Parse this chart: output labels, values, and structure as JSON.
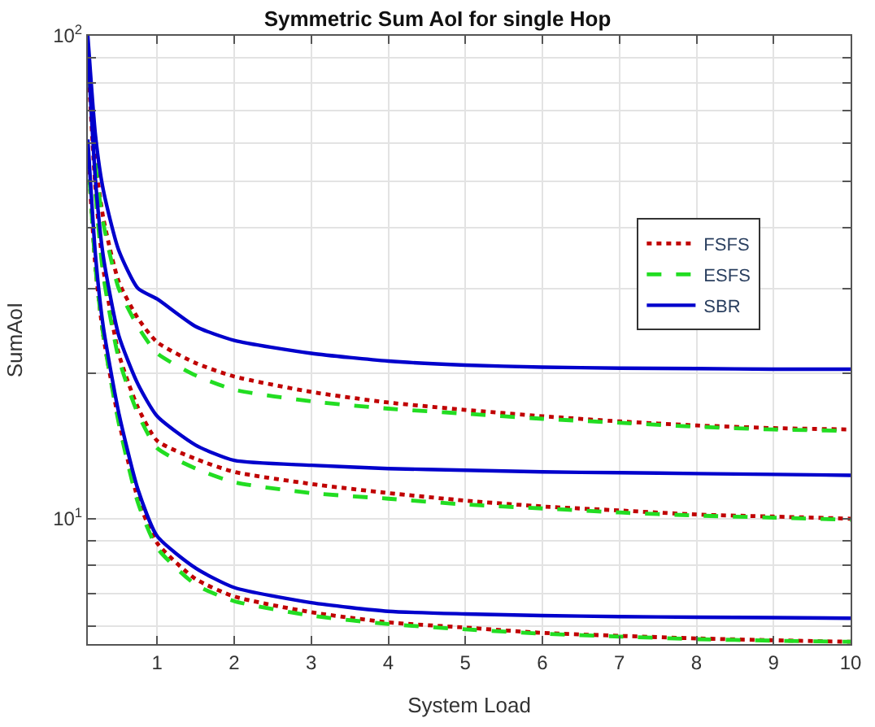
{
  "chart_data": {
    "type": "line",
    "title": "Symmetric Sum AoI for single Hop",
    "xlabel": "System Load",
    "ylabel": "SumAoI",
    "x": [
      0.1,
      0.2,
      0.3,
      0.5,
      0.75,
      1,
      1.5,
      2,
      3,
      4,
      5,
      6,
      7,
      8,
      9,
      10
    ],
    "series": [
      {
        "name": "FSFS",
        "color": "#c00000",
        "line_style": "dotted",
        "values": [
          95,
          55,
          42,
          31,
          26,
          23.2,
          21,
          19.7,
          18.3,
          17.4,
          16.8,
          16.3,
          15.9,
          15.6,
          15.4,
          15.3
        ]
      },
      {
        "name": "ESFS",
        "color": "#22dd22",
        "line_style": "dashed",
        "values": [
          95,
          54,
          41,
          30,
          25,
          22,
          19.8,
          18.5,
          17.5,
          16.9,
          16.5,
          16.1,
          15.8,
          15.5,
          15.3,
          15.2
        ]
      },
      {
        "name": "SBR",
        "color": "#0000cc",
        "line_style": "solid",
        "values": [
          100,
          62,
          48,
          36,
          30,
          28.5,
          25,
          23.4,
          22,
          21.2,
          20.8,
          20.6,
          20.5,
          20.45,
          20.4,
          20.4
        ]
      },
      {
        "color": "#c00000",
        "line_style": "dotted",
        "values": [
          90,
          48,
          33,
          22,
          17,
          14.5,
          13.3,
          12.5,
          11.8,
          11.3,
          10.9,
          10.6,
          10.4,
          10.2,
          10.1,
          10
        ]
      },
      {
        "color": "#22dd22",
        "line_style": "dashed",
        "values": [
          null,
          47,
          32,
          21.5,
          16.5,
          14,
          12.7,
          11.9,
          11.3,
          11,
          10.7,
          10.5,
          10.3,
          10.15,
          10.05,
          9.95
        ]
      },
      {
        "color": "#0000cc",
        "line_style": "solid",
        "values": [
          94,
          50,
          35,
          24,
          19,
          16.3,
          14.2,
          13.2,
          12.9,
          12.7,
          12.6,
          12.5,
          12.45,
          12.4,
          12.35,
          12.3
        ]
      },
      {
        "color": "#c00000",
        "line_style": "dotted",
        "values": [
          58,
          33,
          24,
          16,
          11,
          8.9,
          7.5,
          6.9,
          6.4,
          6.1,
          5.95,
          5.8,
          5.72,
          5.65,
          5.6,
          5.56
        ]
      },
      {
        "color": "#22dd22",
        "line_style": "dashed",
        "values": [
          58,
          33,
          24,
          15.8,
          10.8,
          8.7,
          7.3,
          6.75,
          6.3,
          6.05,
          5.9,
          5.78,
          5.7,
          5.63,
          5.59,
          5.56
        ]
      },
      {
        "color": "#0000cc",
        "line_style": "solid",
        "values": [
          61,
          35,
          25,
          16.6,
          11.5,
          9.2,
          7.9,
          7.2,
          6.7,
          6.43,
          6.35,
          6.3,
          6.27,
          6.25,
          6.24,
          6.22
        ]
      }
    ],
    "log": "y",
    "xlim": [
      0.1,
      10
    ],
    "xticks": [
      1,
      2,
      3,
      4,
      5,
      6,
      7,
      8,
      9,
      10
    ],
    "ylim": [
      5.5,
      100
    ],
    "yticks": [
      {
        "value": 6,
        "label": null
      },
      {
        "value": 7,
        "label": null
      },
      {
        "value": 8,
        "label": null
      },
      {
        "value": 9,
        "label": null
      },
      {
        "value": 10,
        "label": "10$^{1}$"
      },
      {
        "value": 20,
        "label": null
      },
      {
        "value": 30,
        "label": null
      },
      {
        "value": 40,
        "label": null
      },
      {
        "value": 50,
        "label": null
      },
      {
        "value": 60,
        "label": null
      },
      {
        "value": 70,
        "label": null
      },
      {
        "value": 80,
        "label": null
      },
      {
        "value": 90,
        "label": null
      },
      {
        "value": 100,
        "label": "10$^{2}$"
      }
    ],
    "grid": true,
    "legend": "right",
    "marker": "none"
  }
}
